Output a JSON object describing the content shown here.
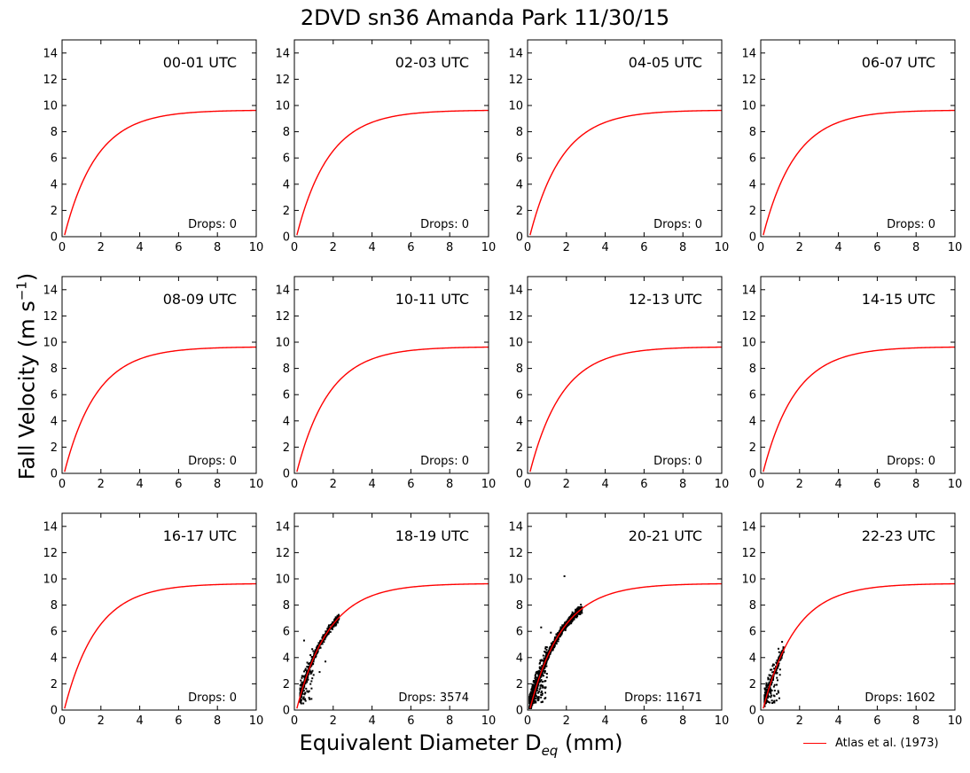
{
  "title": "2DVD sn36 Amanda Park 11/30/15",
  "xlabel": {
    "main": "Equivalent Diameter D",
    "sub": "eq",
    "unit": " (mm)"
  },
  "ylabel": {
    "main": "Fall Velocity (m s",
    "sup": "−1",
    "end": ")"
  },
  "legend": {
    "label": "Atlas et al. (1973)",
    "color": "#ff0000",
    "position": "bottom-right"
  },
  "chart_data": {
    "type": "scatter",
    "layout": "3x4 grid",
    "xlim": [
      0,
      10
    ],
    "ylim": [
      0,
      15
    ],
    "xticks": [
      0,
      2,
      4,
      6,
      8,
      10
    ],
    "yticks": [
      0,
      2,
      4,
      6,
      8,
      10,
      12,
      14
    ],
    "grid": false,
    "reference_curve": {
      "name": "Atlas et al. (1973)",
      "formula": "v = 9.65 - 10.3*exp(-0.6*D)",
      "color": "#ff0000"
    },
    "drops_label": "Drops: ",
    "panels": [
      {
        "label": "00-01 UTC",
        "drops": 0
      },
      {
        "label": "02-03 UTC",
        "drops": 0
      },
      {
        "label": "04-05 UTC",
        "drops": 0
      },
      {
        "label": "06-07 UTC",
        "drops": 0
      },
      {
        "label": "08-09 UTC",
        "drops": 0
      },
      {
        "label": "10-11 UTC",
        "drops": 0
      },
      {
        "label": "12-13 UTC",
        "drops": 0
      },
      {
        "label": "14-15 UTC",
        "drops": 0
      },
      {
        "label": "16-17 UTC",
        "drops": 0
      },
      {
        "label": "18-19 UTC",
        "drops": 3574,
        "scatter": {
          "d_range": [
            0.3,
            2.3
          ],
          "outliers": [
            [
              1.6,
              3.7
            ],
            [
              1.3,
              2.9
            ],
            [
              0.5,
              5.3
            ]
          ]
        }
      },
      {
        "label": "20-21 UTC",
        "drops": 11671,
        "scatter": {
          "d_range": [
            0.1,
            2.8
          ],
          "outliers": [
            [
              1.9,
              10.2
            ],
            [
              1.2,
              5.9
            ],
            [
              0.7,
              6.3
            ]
          ]
        }
      },
      {
        "label": "22-23 UTC",
        "drops": 1602,
        "scatter": {
          "d_range": [
            0.2,
            1.2
          ],
          "outliers": [
            [
              1.1,
              5.2
            ]
          ]
        }
      }
    ]
  }
}
